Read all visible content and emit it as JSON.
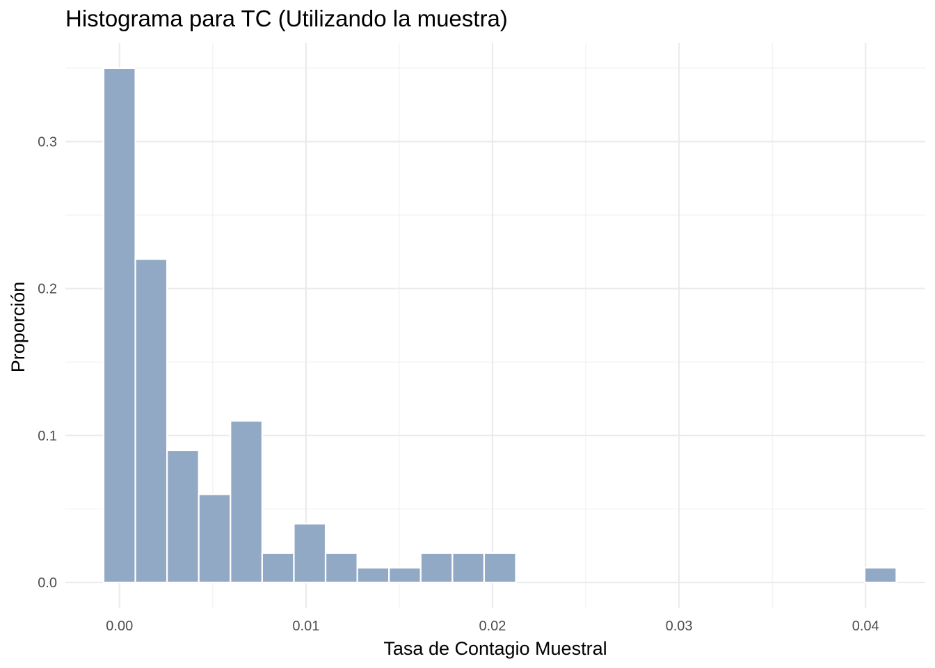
{
  "chart_data": {
    "type": "bar",
    "title": "Histograma para TC (Utilizando la muestra)",
    "xlabel": "Tasa de Contagio Muestral",
    "ylabel": "Proporción",
    "xlim": [
      -0.0029,
      0.0432
    ],
    "ylim": [
      -0.0175,
      0.367
    ],
    "x_ticks": [
      0.0,
      0.01,
      0.02,
      0.03,
      0.04
    ],
    "x_tick_labels": [
      "0.00",
      "0.01",
      "0.02",
      "0.03",
      "0.04"
    ],
    "y_ticks": [
      0.0,
      0.1,
      0.2,
      0.3
    ],
    "y_tick_labels": [
      "0.0",
      "0.1",
      "0.2",
      "0.3"
    ],
    "grid": true,
    "bar_fill": "#91a9c4",
    "bar_outline": "#ffffff",
    "bins": [
      {
        "x0": -0.00085,
        "x1": 0.00085,
        "value": 0.35
      },
      {
        "x0": 0.00085,
        "x1": 0.00255,
        "value": 0.22
      },
      {
        "x0": 0.00255,
        "x1": 0.00425,
        "value": 0.09
      },
      {
        "x0": 0.00425,
        "x1": 0.00595,
        "value": 0.06
      },
      {
        "x0": 0.00595,
        "x1": 0.00765,
        "value": 0.11
      },
      {
        "x0": 0.00765,
        "x1": 0.00935,
        "value": 0.02
      },
      {
        "x0": 0.00935,
        "x1": 0.01105,
        "value": 0.04
      },
      {
        "x0": 0.01105,
        "x1": 0.01275,
        "value": 0.02
      },
      {
        "x0": 0.01275,
        "x1": 0.01445,
        "value": 0.01
      },
      {
        "x0": 0.01445,
        "x1": 0.01615,
        "value": 0.01
      },
      {
        "x0": 0.01615,
        "x1": 0.01785,
        "value": 0.02
      },
      {
        "x0": 0.01785,
        "x1": 0.01955,
        "value": 0.02
      },
      {
        "x0": 0.01955,
        "x1": 0.02125,
        "value": 0.02
      },
      {
        "x0": 0.02125,
        "x1": 0.02295,
        "value": 0.0
      },
      {
        "x0": 0.02295,
        "x1": 0.02465,
        "value": 0.0
      },
      {
        "x0": 0.02465,
        "x1": 0.02635,
        "value": 0.0
      },
      {
        "x0": 0.02635,
        "x1": 0.02805,
        "value": 0.0
      },
      {
        "x0": 0.02805,
        "x1": 0.02975,
        "value": 0.0
      },
      {
        "x0": 0.02975,
        "x1": 0.03145,
        "value": 0.0
      },
      {
        "x0": 0.03145,
        "x1": 0.03315,
        "value": 0.0
      },
      {
        "x0": 0.03315,
        "x1": 0.03485,
        "value": 0.0
      },
      {
        "x0": 0.03485,
        "x1": 0.03655,
        "value": 0.0
      },
      {
        "x0": 0.03655,
        "x1": 0.03825,
        "value": 0.0
      },
      {
        "x0": 0.03825,
        "x1": 0.03995,
        "value": 0.0
      },
      {
        "x0": 0.03995,
        "x1": 0.04165,
        "value": 0.01
      }
    ]
  }
}
